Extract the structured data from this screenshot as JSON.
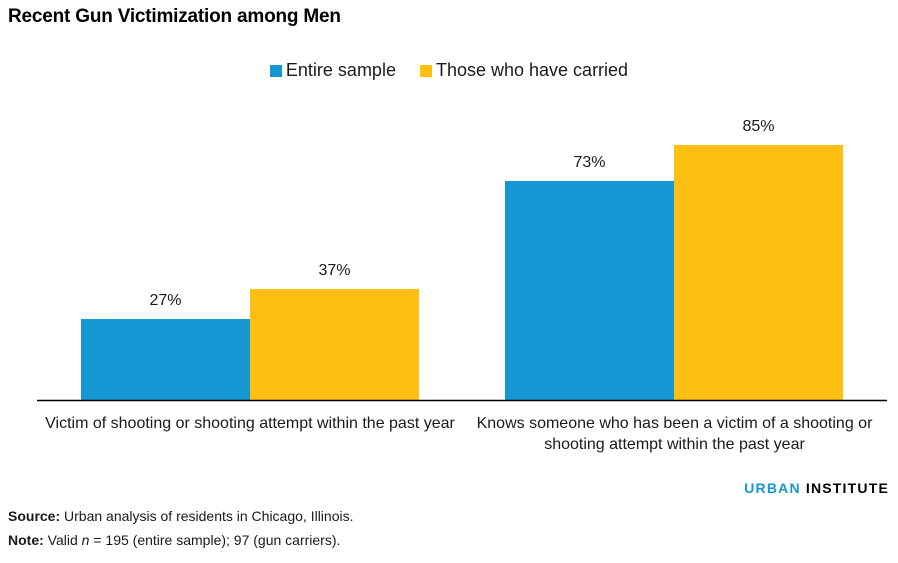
{
  "title": "Recent Gun Victimization among Men",
  "colors": {
    "entire": "#1696d2",
    "carried": "#fdbf11"
  },
  "chart_data": {
    "type": "bar",
    "title": "Recent Gun Victimization among Men",
    "categories": [
      "Victim of shooting or shooting attempt within the past year",
      "Knows someone who has been a victim of a shooting or shooting attempt within the past year"
    ],
    "series": [
      {
        "name": "Entire sample",
        "values": [
          27,
          73
        ],
        "labels": [
          "27%",
          "73%"
        ]
      },
      {
        "name": "Those who have carried",
        "values": [
          37,
          85
        ],
        "labels": [
          "37%",
          "85%"
        ]
      }
    ],
    "ylim": [
      0,
      100
    ],
    "grid": false,
    "legend_position": "top-center"
  },
  "legend": [
    "Entire sample",
    "Those who have carried"
  ],
  "category_labels": [
    "Victim of shooting or shooting attempt within the past year",
    "Knows someone who has been a victim of a shooting or shooting attempt within the past year"
  ],
  "brand": {
    "part1": "URBAN",
    "part2": "INSTITUTE"
  },
  "source": {
    "label": "Source:",
    "text": "Urban analysis of residents in Chicago, Illinois."
  },
  "note": {
    "label": "Note:",
    "pre": "Valid",
    "n": "n",
    "text": "= 195 (entire sample); 97 (gun carriers)."
  }
}
